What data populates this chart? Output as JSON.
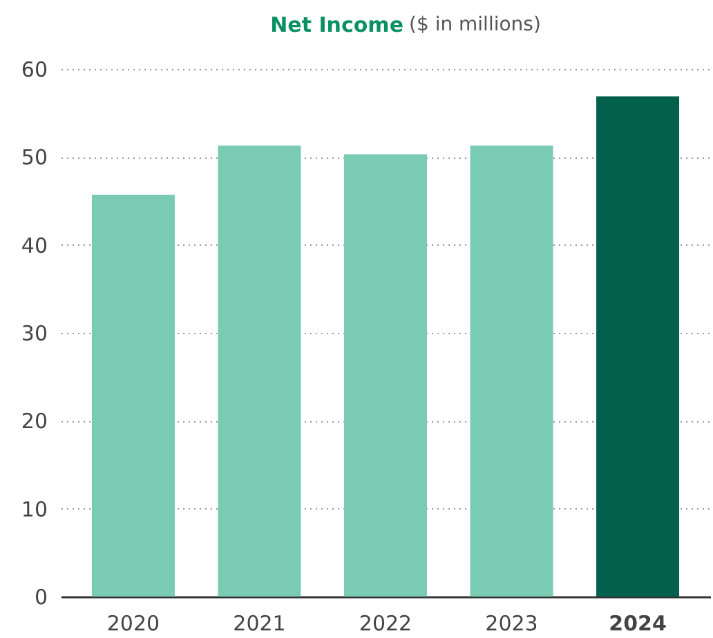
{
  "chart_data": {
    "type": "bar",
    "title": "Net Income",
    "subtitle": "($ in millions)",
    "categories": [
      "2020",
      "2021",
      "2022",
      "2023",
      "2024"
    ],
    "values": [
      45.7,
      51.3,
      50.3,
      51.3,
      56.9
    ],
    "colors": [
      "#7acbb4",
      "#7acbb4",
      "#7acbb4",
      "#7acbb4",
      "#03604d"
    ],
    "ylim": [
      0,
      60
    ],
    "yticks": [
      0,
      10,
      20,
      30,
      40,
      50,
      60
    ],
    "grid": "y"
  }
}
